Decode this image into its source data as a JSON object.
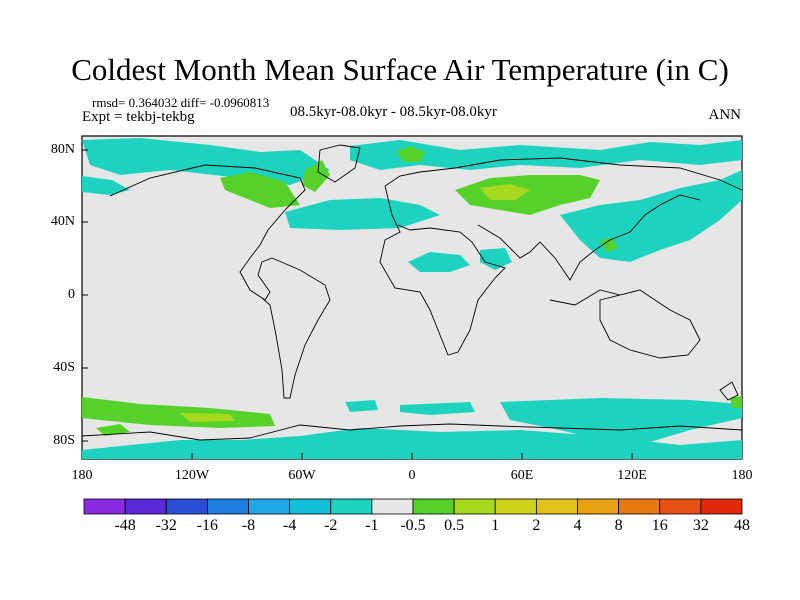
{
  "title": "Coldest Month Mean Surface Air Temperature (in C)",
  "stats": "rmsd= 0.364032 diff= -0.0960813",
  "experiment": "Expt = tekbj-tekbg",
  "period": "08.5kyr-08.0kyr - 08.5kyr-08.0kyr",
  "season": "ANN",
  "lat_labels": [
    "80N",
    "40N",
    "0",
    "40S",
    "80S"
  ],
  "lon_labels": [
    "180",
    "120W",
    "60W",
    "0",
    "60E",
    "120E",
    "180"
  ],
  "colorbar": {
    "colors": [
      "#8a2be2",
      "#5a28d8",
      "#2a4fd6",
      "#1f7fe0",
      "#1fa7e6",
      "#13bfd6",
      "#1dd3c0",
      "#e6e6e6",
      "#56d12a",
      "#a6d81e",
      "#cdd21a",
      "#e0c21a",
      "#e6a012",
      "#e67a12",
      "#e65012",
      "#e02a0a"
    ],
    "labels": [
      "-48",
      "-32",
      "-16",
      "-8",
      "-4",
      "-2",
      "-1",
      "-0.5",
      "0.5",
      "1",
      "2",
      "4",
      "8",
      "16",
      "32",
      "48"
    ]
  },
  "map": {
    "background": "#e6e6e6",
    "cool": "#1dd3c0",
    "teal": "#13bfd6",
    "warm": "#56d12a",
    "warmer": "#a6d81e"
  }
}
